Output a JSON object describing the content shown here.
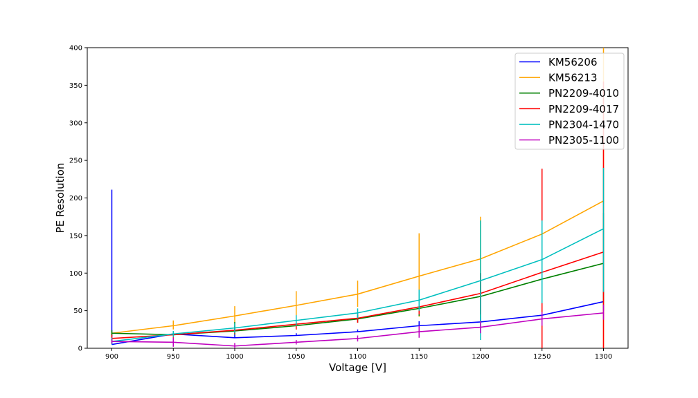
{
  "chart_data": {
    "type": "line",
    "title": "",
    "xlabel": "Voltage [V]",
    "ylabel": "PE Resolution",
    "x": [
      900,
      950,
      1000,
      1050,
      1100,
      1150,
      1200,
      1250,
      1300
    ],
    "xlim": [
      880,
      1320
    ],
    "ylim": [
      0,
      400
    ],
    "xticks": [
      900,
      950,
      1000,
      1050,
      1100,
      1150,
      1200,
      1250,
      1300
    ],
    "yticks": [
      0,
      50,
      100,
      150,
      200,
      250,
      300,
      350,
      400
    ],
    "grid": false,
    "legend_position": "top-right",
    "series": [
      {
        "name": "KM56206",
        "color": "#0000ff",
        "values": [
          5,
          19,
          14,
          17,
          22,
          30,
          35,
          44,
          62
        ],
        "err_low": [
          5,
          19,
          14,
          17,
          22,
          30,
          35,
          44,
          62
        ],
        "err_high": [
          211,
          22,
          18,
          20,
          25,
          36,
          40,
          50,
          78
        ]
      },
      {
        "name": "KM56213",
        "color": "#ffa500",
        "values": [
          20,
          30,
          43,
          57,
          72,
          96,
          119,
          152,
          196
        ],
        "err_low": [
          18,
          25,
          35,
          42,
          55,
          42,
          65,
          40,
          0
        ],
        "err_high": [
          22,
          37,
          56,
          76,
          90,
          153,
          175,
          235,
          400
        ]
      },
      {
        "name": "PN2209-4010",
        "color": "#008000",
        "values": [
          20,
          18,
          23,
          30,
          39,
          53,
          69,
          92,
          113
        ],
        "err_low": [
          16,
          15,
          18,
          25,
          34,
          43,
          40,
          50,
          50
        ],
        "err_high": [
          24,
          21,
          35,
          38,
          44,
          63,
          100,
          140,
          180
        ]
      },
      {
        "name": "PN2209-4017",
        "color": "#ff0000",
        "values": [
          13,
          18,
          24,
          32,
          40,
          55,
          73,
          101,
          128
        ],
        "err_low": [
          8,
          14,
          19,
          25,
          34,
          45,
          45,
          0,
          0
        ],
        "err_high": [
          18,
          22,
          29,
          38,
          46,
          65,
          100,
          239,
          355
        ]
      },
      {
        "name": "PN2304-1470",
        "color": "#00bfbf",
        "values": [
          9,
          19,
          27,
          37,
          47,
          64,
          90,
          118,
          159
        ],
        "err_low": [
          5,
          15,
          20,
          30,
          40,
          50,
          11,
          60,
          75
        ],
        "err_high": [
          14,
          23,
          33,
          44,
          53,
          78,
          170,
          170,
          240
        ]
      },
      {
        "name": "PN2305-1100",
        "color": "#bf00bf",
        "values": [
          9,
          8,
          3,
          8,
          13,
          22,
          28,
          39,
          47
        ],
        "err_low": [
          6,
          2,
          0,
          5,
          9,
          14,
          20,
          30,
          38
        ],
        "err_high": [
          12,
          14,
          7,
          11,
          17,
          30,
          36,
          48,
          58
        ]
      }
    ]
  }
}
